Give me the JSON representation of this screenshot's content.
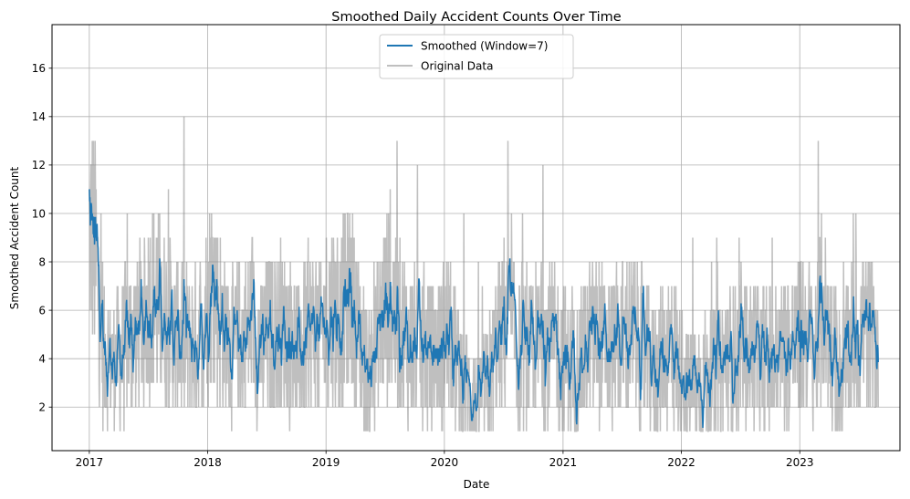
{
  "chart_data": {
    "type": "line",
    "title": "Smoothed Daily Accident Counts Over Time",
    "xlabel": "Date",
    "ylabel": "Smoothed Accident Count",
    "x_ticks": [
      "2017",
      "2018",
      "2019",
      "2020",
      "2021",
      "2022",
      "2023"
    ],
    "y_ticks": [
      "2",
      "4",
      "6",
      "8",
      "10",
      "12",
      "14",
      "16"
    ],
    "xlim": [
      "2016-09-08",
      "2023-11-06"
    ],
    "ylim": [
      0.2,
      17.8
    ],
    "grid": true,
    "legend_position": "top-center",
    "x_start": "2017-01-01",
    "x_end": "2023-08-31",
    "series": [
      {
        "name": "Smoothed (Window=7)",
        "color": "#1f77b4",
        "description": "7-point rolling mean, sampled monthly",
        "x": [
          "2017-01",
          "2017-02",
          "2017-03",
          "2017-04",
          "2017-05",
          "2017-06",
          "2017-07",
          "2017-08",
          "2017-09",
          "2017-10",
          "2017-11",
          "2017-12",
          "2018-01",
          "2018-02",
          "2018-03",
          "2018-04",
          "2018-05",
          "2018-06",
          "2018-07",
          "2018-08",
          "2018-09",
          "2018-10",
          "2018-11",
          "2018-12",
          "2019-01",
          "2019-02",
          "2019-03",
          "2019-04",
          "2019-05",
          "2019-06",
          "2019-07",
          "2019-08",
          "2019-09",
          "2019-10",
          "2019-11",
          "2019-12",
          "2020-01",
          "2020-02",
          "2020-03",
          "2020-04",
          "2020-05",
          "2020-06",
          "2020-07",
          "2020-08",
          "2020-09",
          "2020-10",
          "2020-11",
          "2020-12",
          "2021-01",
          "2021-02",
          "2021-03",
          "2021-04",
          "2021-05",
          "2021-06",
          "2021-07",
          "2021-08",
          "2021-09",
          "2021-10",
          "2021-11",
          "2021-12",
          "2022-01",
          "2022-02",
          "2022-03",
          "2022-04",
          "2022-05",
          "2022-06",
          "2022-07",
          "2022-08",
          "2022-09",
          "2022-10",
          "2022-11",
          "2022-12",
          "2023-01",
          "2023-02",
          "2023-03",
          "2023-04",
          "2023-05",
          "2023-06",
          "2023-07",
          "2023-08"
        ],
        "values": [
          9.0,
          4.2,
          3.6,
          4.5,
          4.8,
          5.6,
          6.8,
          5.8,
          5.0,
          4.9,
          4.4,
          5.2,
          7.3,
          5.4,
          4.3,
          4.8,
          5.5,
          4.4,
          4.9,
          5.3,
          4.6,
          4.3,
          5.2,
          5.0,
          5.8,
          5.7,
          6.8,
          4.6,
          3.2,
          5.4,
          6.6,
          5.2,
          4.6,
          4.3,
          4.1,
          4.3,
          5.0,
          3.6,
          2.6,
          2.1,
          3.0,
          4.6,
          5.7,
          4.3,
          3.8,
          4.7,
          4.8,
          4.2,
          3.8,
          3.6,
          4.5,
          5.0,
          4.2,
          4.5,
          4.8,
          4.9,
          4.1,
          3.6,
          4.4,
          4.1,
          3.1,
          2.8,
          3.2,
          3.3,
          3.9,
          4.0,
          4.3,
          4.2,
          4.0,
          4.1,
          4.4,
          4.6,
          5.1,
          4.2,
          6.3,
          4.0,
          3.6,
          4.8,
          5.4,
          4.6
        ]
      },
      {
        "name": "Original Data",
        "color": "#808080",
        "description": "daily counts, approximately range 1 to 17"
      }
    ]
  }
}
